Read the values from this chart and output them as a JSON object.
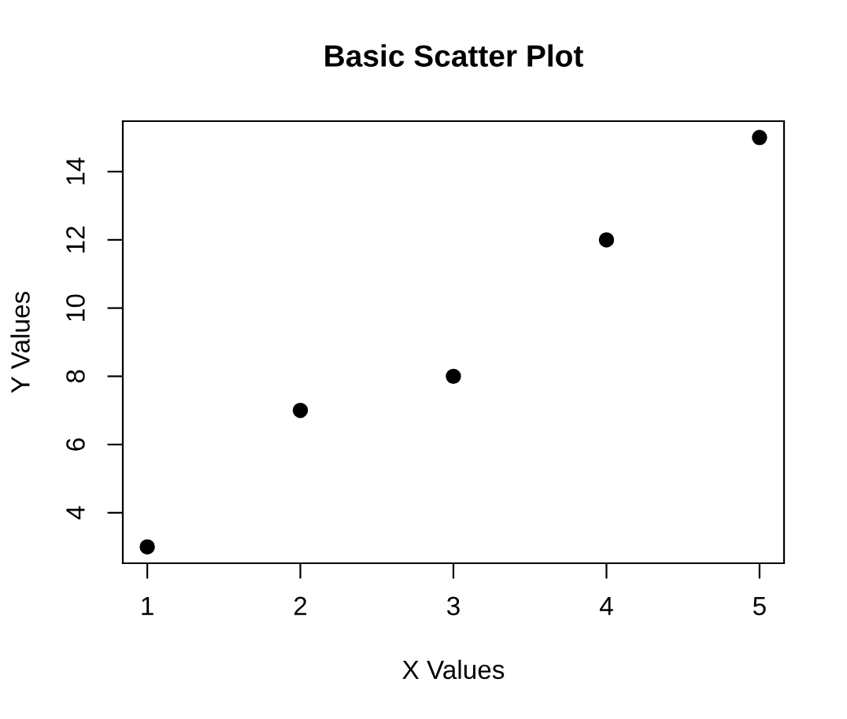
{
  "chart_data": {
    "type": "scatter",
    "title": "Basic Scatter Plot",
    "xlabel": "X Values",
    "ylabel": "Y Values",
    "x": [
      1,
      2,
      3,
      4,
      5
    ],
    "values": [
      3,
      7,
      8,
      12,
      15
    ],
    "color": "#000000",
    "marker": "circle",
    "xlim": [
      0.84,
      5.16
    ],
    "ylim": [
      2.52,
      15.48
    ],
    "xticks": [
      1,
      2,
      3,
      4,
      5
    ],
    "yticks": [
      4,
      6,
      8,
      10,
      12,
      14
    ],
    "grid": false,
    "legend": false
  }
}
